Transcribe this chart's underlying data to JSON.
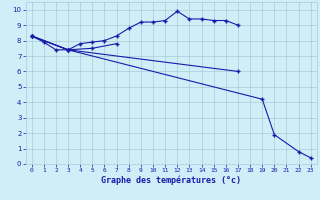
{
  "xlabel": "Graphe des températures (°c)",
  "background_color": "#d0eef8",
  "grid_color": "#a8ccd8",
  "line_color": "#1a1aaa",
  "xlim": [
    -0.5,
    23.5
  ],
  "ylim": [
    0,
    10.5
  ],
  "xticks": [
    0,
    1,
    2,
    3,
    4,
    5,
    6,
    7,
    8,
    9,
    10,
    11,
    12,
    13,
    14,
    15,
    16,
    17,
    18,
    19,
    20,
    21,
    22,
    23
  ],
  "yticks": [
    0,
    1,
    2,
    3,
    4,
    5,
    6,
    7,
    8,
    9,
    10
  ],
  "series_full": [
    {
      "x": [
        0,
        1,
        2,
        3,
        4,
        5,
        6,
        7,
        8,
        9,
        10,
        11,
        12,
        13,
        14,
        15,
        16,
        17
      ],
      "y": [
        8.3,
        7.9,
        7.4,
        7.4,
        7.8,
        7.9,
        8.0,
        8.3,
        8.8,
        9.2,
        9.2,
        9.3,
        9.9,
        9.4,
        9.4,
        9.3,
        9.3,
        9.0
      ]
    },
    {
      "x": [
        0,
        3,
        5,
        7
      ],
      "y": [
        8.3,
        7.4,
        7.5,
        7.8
      ]
    },
    {
      "x": [
        0,
        3,
        17
      ],
      "y": [
        8.3,
        7.4,
        6.0
      ]
    },
    {
      "x": [
        0,
        3,
        19,
        20,
        22,
        23
      ],
      "y": [
        8.3,
        7.4,
        4.2,
        1.9,
        0.8,
        0.4
      ]
    }
  ]
}
